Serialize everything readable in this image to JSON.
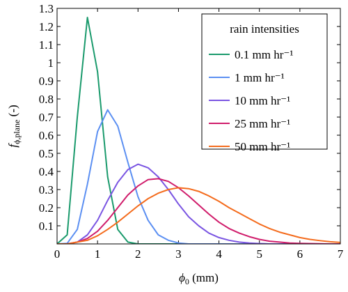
{
  "chart_data": {
    "type": "line",
    "xlabel": [
      "ϕ",
      "0",
      " (mm)"
    ],
    "ylabel": [
      "f",
      "ϕ,plane",
      " (-)"
    ],
    "legend_title": "rain intensities",
    "legend": "upper right",
    "xlim": [
      0,
      7
    ],
    "ylim": [
      0,
      1.3
    ],
    "xticks": [
      0,
      1,
      2,
      3,
      4,
      5,
      6,
      7
    ],
    "yticks": [
      0.1,
      0.2,
      0.3,
      0.4,
      0.5,
      0.6,
      0.7,
      0.8,
      0.9,
      1,
      1.1,
      1.2,
      1.3
    ],
    "x": [
      0,
      0.25,
      0.5,
      0.75,
      1,
      1.25,
      1.5,
      1.75,
      2,
      2.25,
      2.5,
      2.75,
      3,
      3.25,
      3.5,
      3.75,
      4,
      4.25,
      4.5,
      4.75,
      5,
      5.25,
      5.5,
      5.75,
      6,
      6.25,
      6.5,
      6.75,
      7
    ],
    "series": [
      {
        "name": "0.1 mm hr⁻¹",
        "color": "#1a9a6c",
        "values": [
          0,
          0.05,
          0.7,
          1.25,
          0.95,
          0.37,
          0.08,
          0.01,
          0,
          0,
          0,
          0,
          0,
          0,
          0,
          0,
          0,
          0,
          0,
          0,
          0,
          0,
          0,
          0,
          0,
          0,
          0,
          0,
          0
        ]
      },
      {
        "name": "1 mm hr⁻¹",
        "color": "#5b8ff2",
        "values": [
          0,
          0.003,
          0.08,
          0.33,
          0.62,
          0.74,
          0.65,
          0.45,
          0.26,
          0.13,
          0.05,
          0.02,
          0.005,
          0,
          0,
          0,
          0,
          0,
          0,
          0,
          0,
          0,
          0,
          0,
          0,
          0,
          0,
          0,
          0
        ]
      },
      {
        "name": "10 mm hr⁻¹",
        "color": "#7a55e2",
        "values": [
          0,
          0,
          0.01,
          0.05,
          0.13,
          0.24,
          0.34,
          0.41,
          0.44,
          0.42,
          0.37,
          0.3,
          0.22,
          0.15,
          0.1,
          0.06,
          0.035,
          0.02,
          0.01,
          0.005,
          0.002,
          0,
          0,
          0,
          0,
          0,
          0,
          0,
          0
        ]
      },
      {
        "name": "25 mm hr⁻¹",
        "color": "#d01c6b",
        "values": [
          0,
          0,
          0.01,
          0.03,
          0.07,
          0.13,
          0.2,
          0.27,
          0.32,
          0.355,
          0.36,
          0.345,
          0.31,
          0.265,
          0.215,
          0.165,
          0.12,
          0.085,
          0.06,
          0.04,
          0.025,
          0.015,
          0.01,
          0.005,
          0.003,
          0.002,
          0.001,
          0,
          0
        ]
      },
      {
        "name": "50 mm hr⁻¹",
        "color": "#f46b1c",
        "values": [
          0,
          0,
          0.01,
          0.02,
          0.045,
          0.08,
          0.12,
          0.165,
          0.21,
          0.25,
          0.28,
          0.3,
          0.31,
          0.305,
          0.29,
          0.265,
          0.235,
          0.2,
          0.17,
          0.14,
          0.11,
          0.085,
          0.065,
          0.05,
          0.035,
          0.025,
          0.018,
          0.012,
          0.008
        ]
      }
    ]
  }
}
